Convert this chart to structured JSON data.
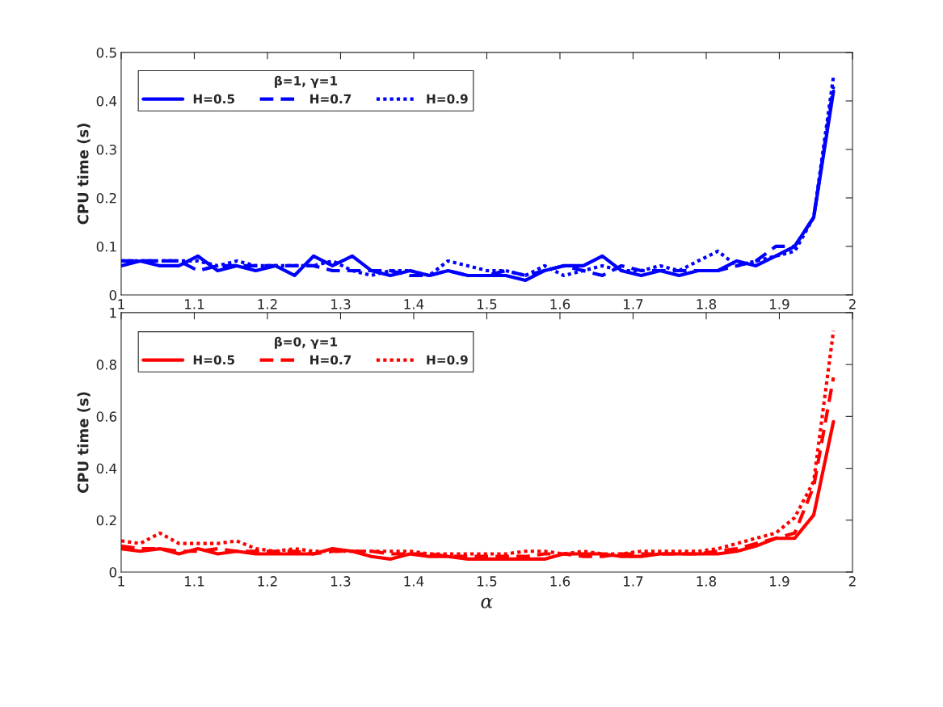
{
  "chart_data": [
    {
      "type": "line",
      "ylabel": "CPU time (s)",
      "legend_title": "β=1, γ=1",
      "legend": "top left",
      "grid": false,
      "marker": "none",
      "x": [
        1,
        1.026,
        1.053,
        1.079,
        1.105,
        1.132,
        1.158,
        1.184,
        1.211,
        1.237,
        1.263,
        1.289,
        1.316,
        1.342,
        1.368,
        1.395,
        1.421,
        1.447,
        1.474,
        1.5,
        1.526,
        1.553,
        1.579,
        1.605,
        1.632,
        1.658,
        1.684,
        1.711,
        1.737,
        1.763,
        1.789,
        1.816,
        1.842,
        1.868,
        1.895,
        1.921,
        1.947,
        1.974
      ],
      "xlim": [
        1,
        2
      ],
      "xticks": [
        1,
        1.1,
        1.2,
        1.3,
        1.4,
        1.5,
        1.6,
        1.7,
        1.8,
        1.9,
        2
      ],
      "ylim": [
        0,
        0.5
      ],
      "yticks": [
        0,
        0.1,
        0.2,
        0.3,
        0.4,
        0.5
      ],
      "series": [
        {
          "name": "H=0.5",
          "color": "#0000ff",
          "line_style": "solid",
          "values": [
            0.06,
            0.07,
            0.06,
            0.06,
            0.08,
            0.05,
            0.06,
            0.05,
            0.06,
            0.04,
            0.08,
            0.06,
            0.08,
            0.05,
            0.04,
            0.05,
            0.04,
            0.05,
            0.04,
            0.04,
            0.04,
            0.03,
            0.05,
            0.06,
            0.06,
            0.08,
            0.05,
            0.04,
            0.05,
            0.04,
            0.05,
            0.05,
            0.07,
            0.06,
            0.08,
            0.1,
            0.16,
            0.42
          ]
        },
        {
          "name": "H=0.7",
          "color": "#0000ff",
          "line_style": "dashed",
          "values": [
            0.07,
            0.07,
            0.07,
            0.07,
            0.05,
            0.06,
            0.06,
            0.06,
            0.06,
            0.06,
            0.06,
            0.05,
            0.05,
            0.05,
            0.05,
            0.04,
            0.04,
            0.05,
            0.04,
            0.04,
            0.05,
            0.04,
            0.05,
            0.06,
            0.05,
            0.04,
            0.06,
            0.05,
            0.05,
            0.05,
            0.05,
            0.05,
            0.06,
            0.07,
            0.1,
            0.1,
            0.16,
            0.43
          ]
        },
        {
          "name": "H=0.9",
          "color": "#0000ff",
          "line_style": "dotted",
          "values": [
            0.07,
            0.07,
            0.07,
            0.07,
            0.07,
            0.06,
            0.07,
            0.06,
            0.06,
            0.06,
            0.06,
            0.07,
            0.05,
            0.04,
            0.05,
            0.05,
            0.04,
            0.07,
            0.06,
            0.05,
            0.05,
            0.04,
            0.06,
            0.04,
            0.05,
            0.06,
            0.05,
            0.05,
            0.06,
            0.05,
            0.07,
            0.09,
            0.06,
            0.07,
            0.08,
            0.09,
            0.16,
            0.45
          ]
        }
      ]
    },
    {
      "type": "line",
      "xlabel": "α",
      "ylabel": "CPU time (s)",
      "legend_title": "β=0, γ=1",
      "legend": "top left",
      "grid": false,
      "marker": "none",
      "x": [
        1,
        1.026,
        1.053,
        1.079,
        1.105,
        1.132,
        1.158,
        1.184,
        1.211,
        1.237,
        1.263,
        1.289,
        1.316,
        1.342,
        1.368,
        1.395,
        1.421,
        1.447,
        1.474,
        1.5,
        1.526,
        1.553,
        1.579,
        1.605,
        1.632,
        1.658,
        1.684,
        1.711,
        1.737,
        1.763,
        1.789,
        1.816,
        1.842,
        1.868,
        1.895,
        1.921,
        1.947,
        1.974
      ],
      "xlim": [
        1,
        2
      ],
      "xticks": [
        1,
        1.1,
        1.2,
        1.3,
        1.4,
        1.5,
        1.6,
        1.7,
        1.8,
        1.9,
        2
      ],
      "ylim": [
        0,
        1
      ],
      "yticks": [
        0,
        0.2,
        0.4,
        0.6,
        0.8,
        1
      ],
      "series": [
        {
          "name": "H=0.5",
          "color": "#ff0000",
          "line_style": "solid",
          "values": [
            0.09,
            0.08,
            0.09,
            0.07,
            0.09,
            0.07,
            0.08,
            0.07,
            0.07,
            0.07,
            0.07,
            0.09,
            0.08,
            0.06,
            0.05,
            0.07,
            0.06,
            0.06,
            0.05,
            0.05,
            0.05,
            0.05,
            0.05,
            0.07,
            0.07,
            0.07,
            0.06,
            0.06,
            0.07,
            0.07,
            0.07,
            0.07,
            0.08,
            0.1,
            0.13,
            0.13,
            0.22,
            0.58
          ]
        },
        {
          "name": "H=0.7",
          "color": "#ff0000",
          "line_style": "dashed",
          "values": [
            0.1,
            0.09,
            0.09,
            0.08,
            0.08,
            0.09,
            0.08,
            0.08,
            0.08,
            0.08,
            0.07,
            0.08,
            0.08,
            0.08,
            0.07,
            0.07,
            0.07,
            0.06,
            0.06,
            0.06,
            0.06,
            0.06,
            0.07,
            0.07,
            0.06,
            0.06,
            0.07,
            0.07,
            0.07,
            0.07,
            0.07,
            0.08,
            0.09,
            0.11,
            0.13,
            0.15,
            0.33,
            0.75
          ]
        },
        {
          "name": "H=0.9",
          "color": "#ff0000",
          "line_style": "dotted",
          "values": [
            0.12,
            0.11,
            0.15,
            0.11,
            0.11,
            0.11,
            0.12,
            0.09,
            0.08,
            0.09,
            0.08,
            0.08,
            0.08,
            0.08,
            0.08,
            0.08,
            0.07,
            0.07,
            0.07,
            0.07,
            0.07,
            0.08,
            0.08,
            0.07,
            0.08,
            0.07,
            0.07,
            0.08,
            0.08,
            0.08,
            0.08,
            0.09,
            0.11,
            0.13,
            0.15,
            0.21,
            0.35,
            0.93
          ]
        }
      ]
    }
  ]
}
